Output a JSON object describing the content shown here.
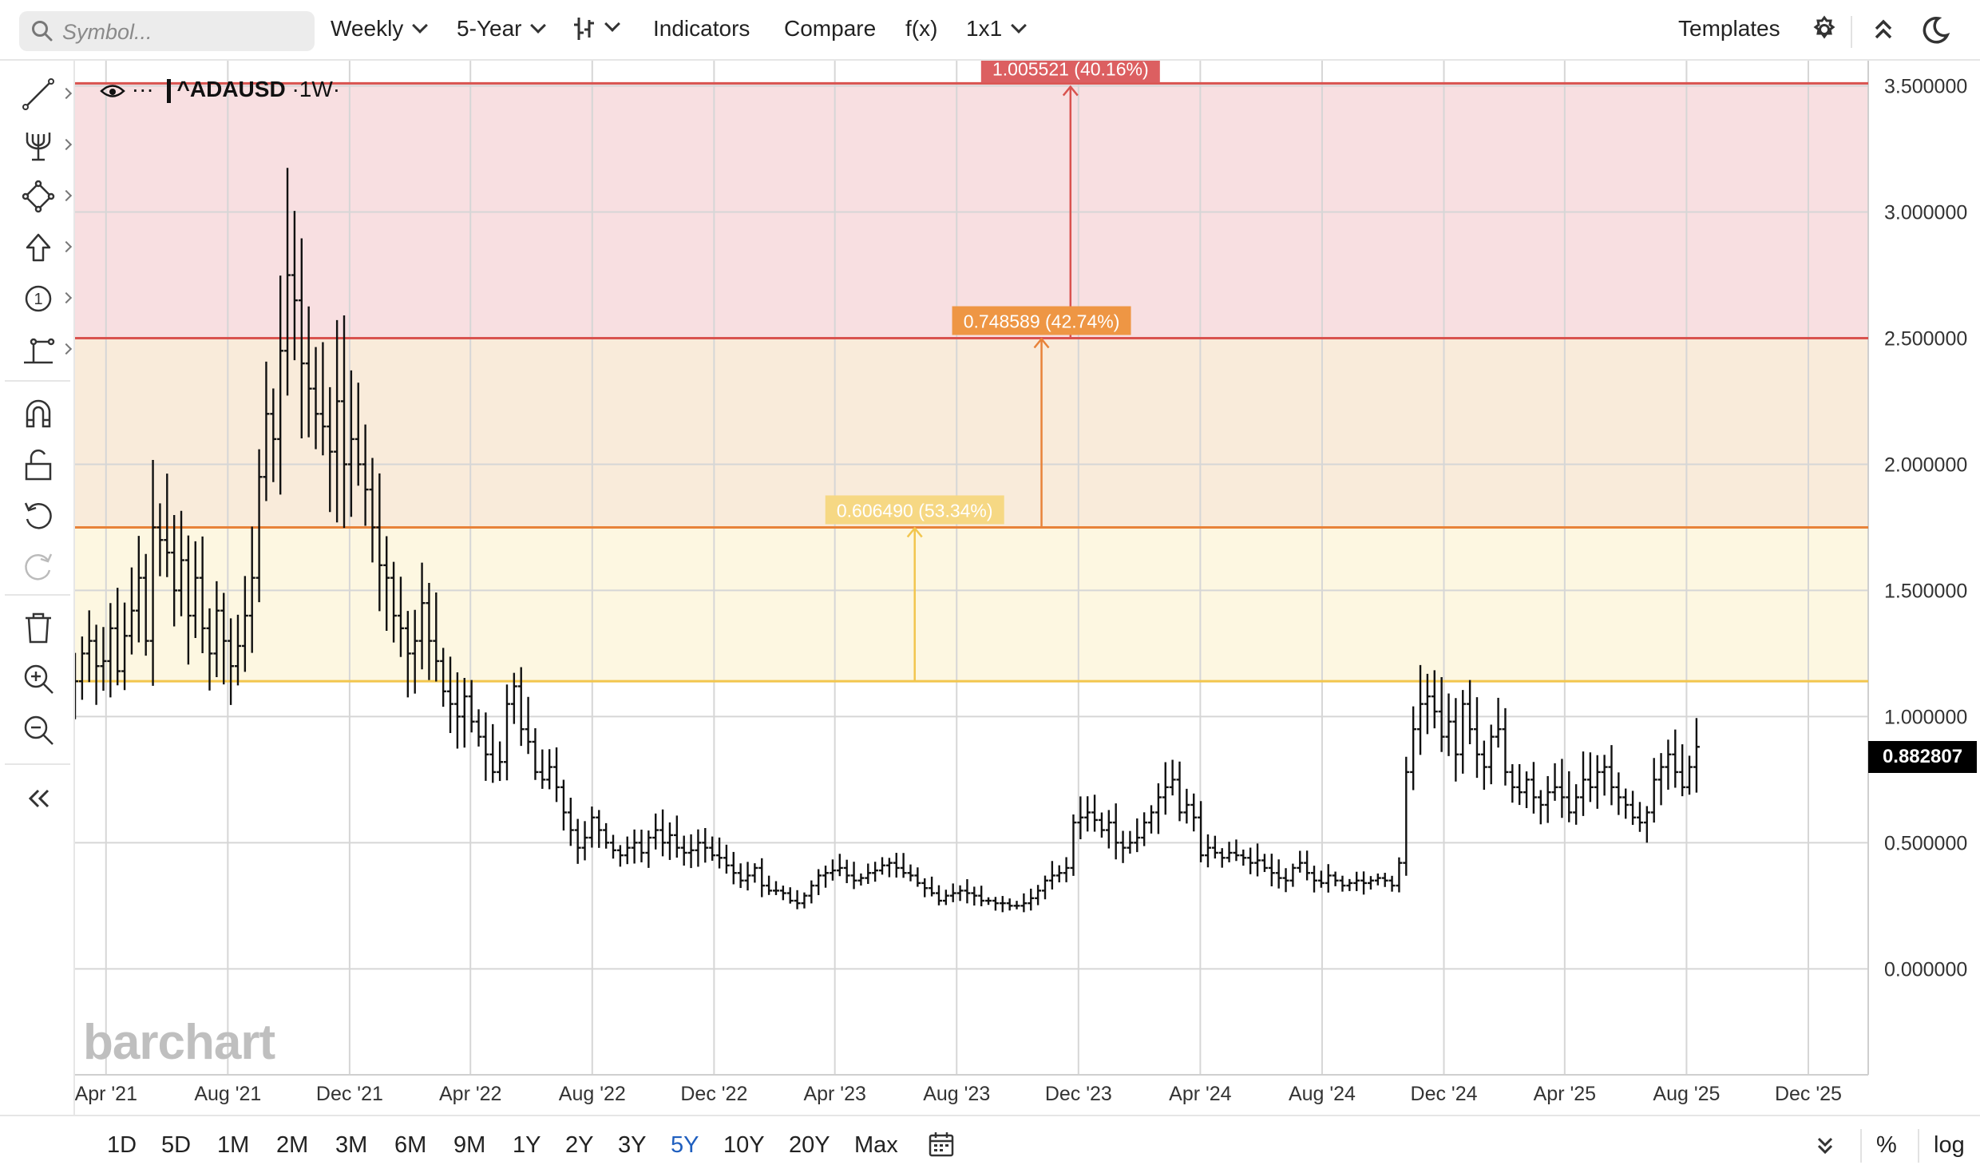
{
  "toolbar": {
    "search_placeholder": "Symbol...",
    "interval": "Weekly",
    "period": "5-Year",
    "indicators": "Indicators",
    "compare": "Compare",
    "fx": "f(x)",
    "layout": "1x1",
    "templates": "Templates"
  },
  "legend": {
    "symbol": "^ADAUSD",
    "interval": "·1W·",
    "menu": "···"
  },
  "watermark": "barchart",
  "last_price": "0.882807",
  "ranges": [
    "1D",
    "5D",
    "1M",
    "2M",
    "3M",
    "6M",
    "9M",
    "1Y",
    "2Y",
    "3Y",
    "5Y",
    "10Y",
    "20Y",
    "Max"
  ],
  "active_range": "5Y",
  "scale_buttons": {
    "percent": "%",
    "log": "log"
  },
  "icons": {
    "left_tools": [
      "trend-line-icon",
      "pitchfork-icon",
      "shapes-icon",
      "arrow-up-icon",
      "number-marker-icon",
      "measure-icon",
      "magnet-icon",
      "unlock-icon",
      "undo-icon",
      "redo-icon",
      "trash-icon",
      "zoom-in-icon",
      "zoom-out-icon",
      "collapse-icon"
    ]
  },
  "colors": {
    "zone_red": "#f8dfe1",
    "zone_orange": "#f9ebda",
    "zone_yellow": "#fdf7e1",
    "line_red": "#d9534f",
    "line_orange": "#e8833a",
    "line_yellow": "#f2c64e",
    "label_red": "#dc5f61",
    "label_orange": "#ee9644",
    "label_yellow": "#f6d884"
  },
  "chart_data": {
    "type": "ohlc",
    "y_ticks": [
      "3.500000",
      "3.000000",
      "2.500000",
      "2.000000",
      "1.500000",
      "1.000000",
      "0.500000",
      "0.000000"
    ],
    "x_ticks": [
      "Apr '21",
      "Aug '21",
      "Dec '21",
      "Apr '22",
      "Aug '22",
      "Dec '22",
      "Apr '23",
      "Aug '23",
      "Dec '23",
      "Apr '24",
      "Aug '24",
      "Dec '24",
      "Apr '25",
      "Aug '25",
      "Dec '25"
    ],
    "ylim": [
      -0.42,
      3.6
    ],
    "x_start": "2021-03-01",
    "x_end": "2026-01-30",
    "zones": [
      {
        "from": 2.5,
        "to": 3.51,
        "color": "red"
      },
      {
        "from": 1.75,
        "to": 2.5,
        "color": "orange"
      },
      {
        "from": 1.14,
        "to": 1.75,
        "color": "yellow"
      }
    ],
    "measure_labels": [
      {
        "text": "1.005521 (40.16%)",
        "date": "2023-11-23",
        "from": 2.5,
        "to": 3.5,
        "color": "red"
      },
      {
        "text": "0.748589 (42.74%)",
        "date": "2023-10-25",
        "from": 1.75,
        "to": 2.5,
        "color": "orange"
      },
      {
        "text": "0.606490 (53.34%)",
        "date": "2023-06-20",
        "from": 1.14,
        "to": 1.75,
        "color": "yellow"
      }
    ],
    "series": [
      {
        "name": "^ADAUSD",
        "close": [
          1.14,
          1.25,
          1.3,
          1.2,
          1.22,
          1.35,
          1.18,
          1.32,
          1.42,
          1.55,
          1.3,
          1.75,
          1.7,
          1.65,
          1.5,
          1.62,
          1.4,
          1.55,
          1.35,
          1.25,
          1.42,
          1.3,
          1.2,
          1.28,
          1.4,
          1.55,
          1.95,
          2.2,
          2.1,
          2.45,
          2.75,
          2.65,
          2.4,
          2.3,
          2.2,
          2.15,
          2.05,
          2.25,
          2.0,
          2.1,
          2.0,
          1.9,
          1.75,
          1.6,
          1.55,
          1.4,
          1.35,
          1.25,
          1.3,
          1.45,
          1.3,
          1.22,
          1.1,
          1.05,
          1.0,
          1.08,
          0.98,
          0.92,
          0.85,
          0.78,
          0.82,
          1.05,
          1.12,
          0.95,
          0.9,
          0.78,
          0.75,
          0.8,
          0.72,
          0.62,
          0.55,
          0.48,
          0.52,
          0.6,
          0.55,
          0.5,
          0.47,
          0.45,
          0.48,
          0.5,
          0.46,
          0.52,
          0.55,
          0.5,
          0.53,
          0.48,
          0.46,
          0.47,
          0.5,
          0.48,
          0.45,
          0.44,
          0.41,
          0.38,
          0.35,
          0.37,
          0.4,
          0.33,
          0.31,
          0.31,
          0.3,
          0.27,
          0.26,
          0.29,
          0.33,
          0.37,
          0.38,
          0.39,
          0.4,
          0.37,
          0.35,
          0.36,
          0.38,
          0.39,
          0.41,
          0.42,
          0.4,
          0.38,
          0.37,
          0.34,
          0.32,
          0.3,
          0.27,
          0.29,
          0.3,
          0.31,
          0.3,
          0.29,
          0.27,
          0.27,
          0.26,
          0.26,
          0.25,
          0.25,
          0.26,
          0.28,
          0.31,
          0.35,
          0.37,
          0.38,
          0.4,
          0.58,
          0.6,
          0.62,
          0.59,
          0.55,
          0.58,
          0.5,
          0.48,
          0.5,
          0.52,
          0.58,
          0.62,
          0.68,
          0.72,
          0.75,
          0.62,
          0.65,
          0.6,
          0.45,
          0.48,
          0.46,
          0.44,
          0.46,
          0.45,
          0.44,
          0.42,
          0.43,
          0.4,
          0.38,
          0.36,
          0.35,
          0.4,
          0.42,
          0.38,
          0.35,
          0.34,
          0.37,
          0.35,
          0.33,
          0.34,
          0.35,
          0.34,
          0.35,
          0.36,
          0.35,
          0.33,
          0.42,
          0.78,
          0.95,
          1.05,
          1.08,
          1.02,
          0.92,
          0.98,
          0.85,
          1.05,
          0.95,
          0.85,
          0.8,
          0.92,
          0.95,
          0.78,
          0.72,
          0.7,
          0.75,
          0.68,
          0.65,
          0.7,
          0.72,
          0.68,
          0.62,
          0.68,
          0.75,
          0.72,
          0.78,
          0.8,
          0.72,
          0.68,
          0.65,
          0.6,
          0.58,
          0.62,
          0.75,
          0.8,
          0.85,
          0.78,
          0.72,
          0.8,
          0.88
        ]
      }
    ]
  }
}
